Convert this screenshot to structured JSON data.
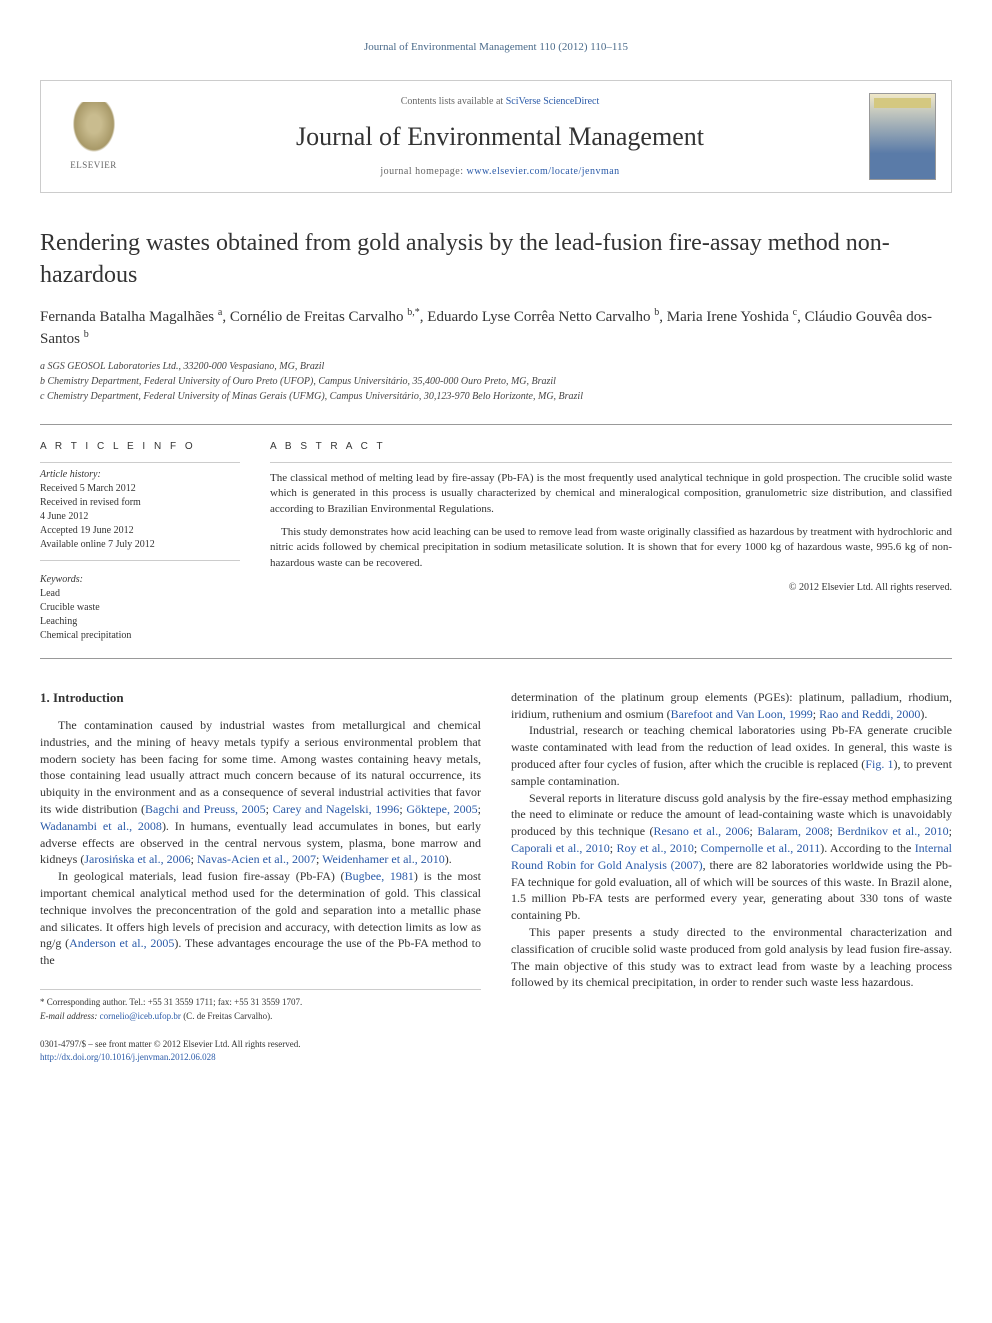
{
  "top_line": "Journal of Environmental Management 110 (2012) 110–115",
  "header": {
    "publisher": "ELSEVIER",
    "avail_prefix": "Contents lists available at ",
    "avail_link": "SciVerse ScienceDirect",
    "journal_title": "Journal of Environmental Management",
    "homepage_prefix": "journal homepage: ",
    "homepage_link": "www.elsevier.com/locate/jenvman"
  },
  "title": "Rendering wastes obtained from gold analysis by the lead-fusion fire-assay method non-hazardous",
  "authors_html": "Fernanda Batalha Magalhães <sup>a</sup>, Cornélio de Freitas Carvalho <sup>b,*</sup>, Eduardo Lyse Corrêa Netto Carvalho <sup>b</sup>, Maria Irene Yoshida <sup>c</sup>, Cláudio Gouvêa dos-Santos <sup>b</sup>",
  "affiliations": [
    "a SGS GEOSOL Laboratories Ltd., 33200-000 Vespasiano, MG, Brazil",
    "b Chemistry Department, Federal University of Ouro Preto (UFOP), Campus Universitário, 35,400-000 Ouro Preto, MG, Brazil",
    "c Chemistry Department, Federal University of Minas Gerais (UFMG), Campus Universitário, 30,123-970 Belo Horizonte, MG, Brazil"
  ],
  "info": {
    "label": "A R T I C L E   I N F O",
    "history_label": "Article history:",
    "history": [
      "Received 5 March 2012",
      "Received in revised form",
      "4 June 2012",
      "Accepted 19 June 2012",
      "Available online 7 July 2012"
    ],
    "keywords_label": "Keywords:",
    "keywords": [
      "Lead",
      "Crucible waste",
      "Leaching",
      "Chemical precipitation"
    ]
  },
  "abstract": {
    "label": "A B S T R A C T",
    "p1": "The classical method of melting lead by fire-assay (Pb-FA) is the most frequently used analytical technique in gold prospection. The crucible solid waste which is generated in this process is usually characterized by chemical and mineralogical composition, granulometric size distribution, and classified according to Brazilian Environmental Regulations.",
    "p2": "This study demonstrates how acid leaching can be used to remove lead from waste originally classified as hazardous by treatment with hydrochloric and nitric acids followed by chemical precipitation in sodium metasilicate solution. It is shown that for every 1000 kg of hazardous waste, 995.6 kg of non-hazardous waste can be recovered.",
    "copyright": "© 2012 Elsevier Ltd. All rights reserved."
  },
  "section1_title": "1. Introduction",
  "left_paragraphs": [
    "The contamination caused by industrial wastes from metallurgical and chemical industries, and the mining of heavy metals typify a serious environmental problem that modern society has been facing for some time. Among wastes containing heavy metals, those containing lead usually attract much concern because of its natural occurrence, its ubiquity in the environment and as a consequence of several industrial activities that favor its wide distribution (<a href='#'>Bagchi and Preuss, 2005</a>; <a href='#'>Carey and Nagelski, 1996</a>; <a href='#'>Göktepe, 2005</a>; <a href='#'>Wadanambi et al., 2008</a>). In humans, eventually lead accumulates in bones, but early adverse effects are observed in the central nervous system, plasma, bone marrow and kidneys (<a href='#'>Jarosińska et al., 2006</a>; <a href='#'>Navas-Acien et al., 2007</a>; <a href='#'>Weidenhamer et al., 2010</a>).",
    "In geological materials, lead fusion fire-assay (Pb-FA) (<a href='#'>Bugbee, 1981</a>) is the most important chemical analytical method used for the determination of gold. This classical technique involves the preconcentration of the gold and separation into a metallic phase and silicates. It offers high levels of precision and accuracy, with detection limits as low as ng/g (<a href='#'>Anderson et al., 2005</a>). These advantages encourage the use of the Pb-FA method to the"
  ],
  "right_paragraphs": [
    "determination of the platinum group elements (PGEs): platinum, palladium, rhodium, iridium, ruthenium and osmium (<a href='#'>Barefoot and Van Loon, 1999</a>; <a href='#'>Rao and Reddi, 2000</a>).",
    "Industrial, research or teaching chemical laboratories using Pb-FA generate crucible waste contaminated with lead from the reduction of lead oxides. In general, this waste is produced after four cycles of fusion, after which the crucible is replaced (<a href='#'>Fig. 1</a>), to prevent sample contamination.",
    "Several reports in literature discuss gold analysis by the fire-essay method emphasizing the need to eliminate or reduce the amount of lead-containing waste which is unavoidably produced by this technique (<a href='#'>Resano et al., 2006</a>; <a href='#'>Balaram, 2008</a>; <a href='#'>Berdnikov et al., 2010</a>; <a href='#'>Caporali et al., 2010</a>; <a href='#'>Roy et al., 2010</a>; <a href='#'>Compernolle et al., 2011</a>). According to the <a href='#'>Internal Round Robin for Gold Analysis (2007)</a>, there are 82 laboratories worldwide using the Pb-FA technique for gold evaluation, all of which will be sources of this waste. In Brazil alone, 1.5 million Pb-FA tests are performed every year, generating about 330 tons of waste containing Pb.",
    "This paper presents a study directed to the environmental characterization and classification of crucible solid waste produced from gold analysis by lead fusion fire-assay. The main objective of this study was to extract lead from waste by a leaching process followed by its chemical precipitation, in order to render such waste less hazardous."
  ],
  "footer_note": {
    "corr": "* Corresponding author. Tel.: +55 31 3559 1711; fax: +55 31 3559 1707.",
    "email_label": "E-mail address: ",
    "email": "cornelio@iceb.ufop.br",
    "email_suffix": " (C. de Freitas Carvalho)."
  },
  "footer_bottom": {
    "line1": "0301-4797/$ – see front matter © 2012 Elsevier Ltd. All rights reserved.",
    "doi": "http://dx.doi.org/10.1016/j.jenvman.2012.06.028"
  },
  "colors": {
    "link": "#2a5aa8",
    "text": "#333333",
    "border": "#cccccc"
  }
}
